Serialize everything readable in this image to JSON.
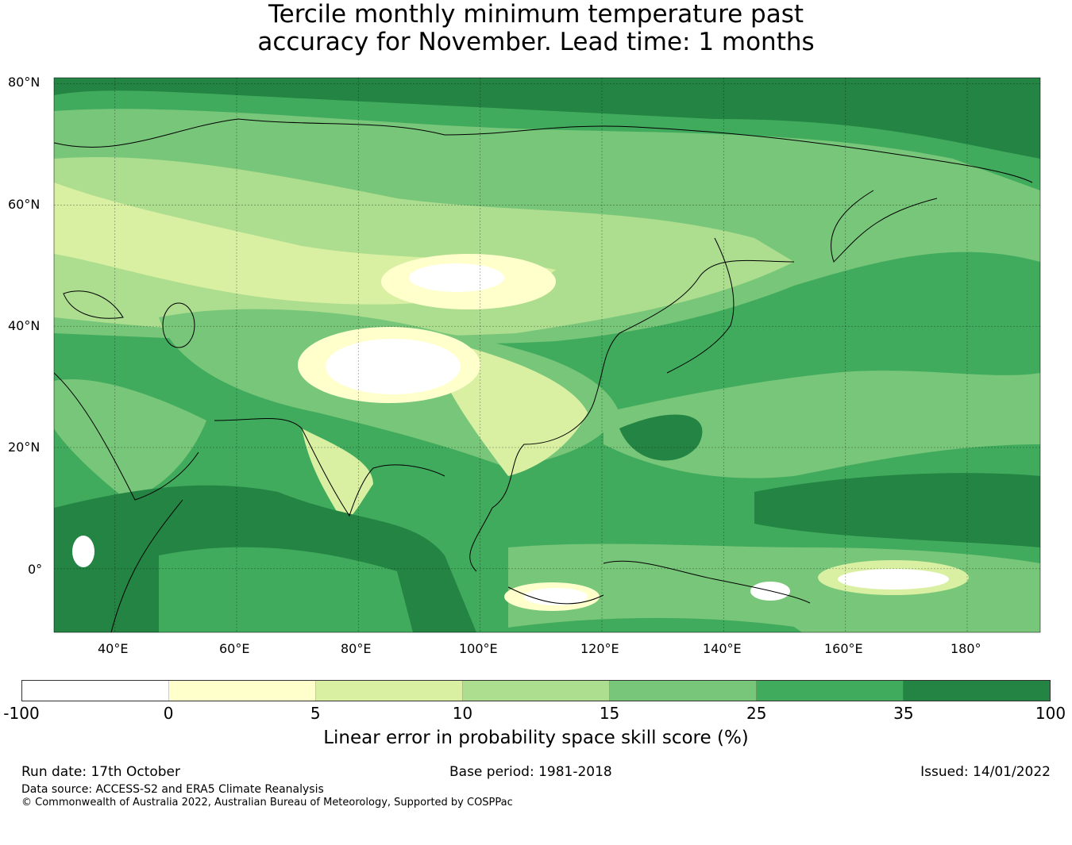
{
  "title_line1": "Tercile monthly minimum temperature past",
  "title_line2": "accuracy for November. Lead time: 1 months",
  "map": {
    "lon_range_deg": [
      30,
      192
    ],
    "lat_range_deg": [
      -10.5,
      81
    ],
    "lat_ticks": [
      "80°N",
      "60°N",
      "40°N",
      "20°N",
      "0°"
    ],
    "lon_ticks": [
      "40°E",
      "60°E",
      "80°E",
      "100°E",
      "120°E",
      "140°E",
      "160°E",
      "180°"
    ]
  },
  "colorbar": {
    "bounds": [
      "-100",
      "0",
      "5",
      "10",
      "15",
      "25",
      "35",
      "100"
    ],
    "colors": [
      "#ffffff",
      "#ffffcc",
      "#d9f0a3",
      "#addd8e",
      "#78c679",
      "#41ab5d",
      "#238443"
    ],
    "label": "Linear error in probability space skill score (%)"
  },
  "footer": {
    "run_date": "Run date: 17th October",
    "base_period": "Base period: 1981-2018",
    "issued": "Issued: 14/01/2022",
    "data_source": "Data source: ACCESS-S2 and ERA5 Climate Reanalysis",
    "copyright": "© Commonwealth of Australia 2022, Australian Bureau of Meteorology, Supported by COSPPac"
  }
}
